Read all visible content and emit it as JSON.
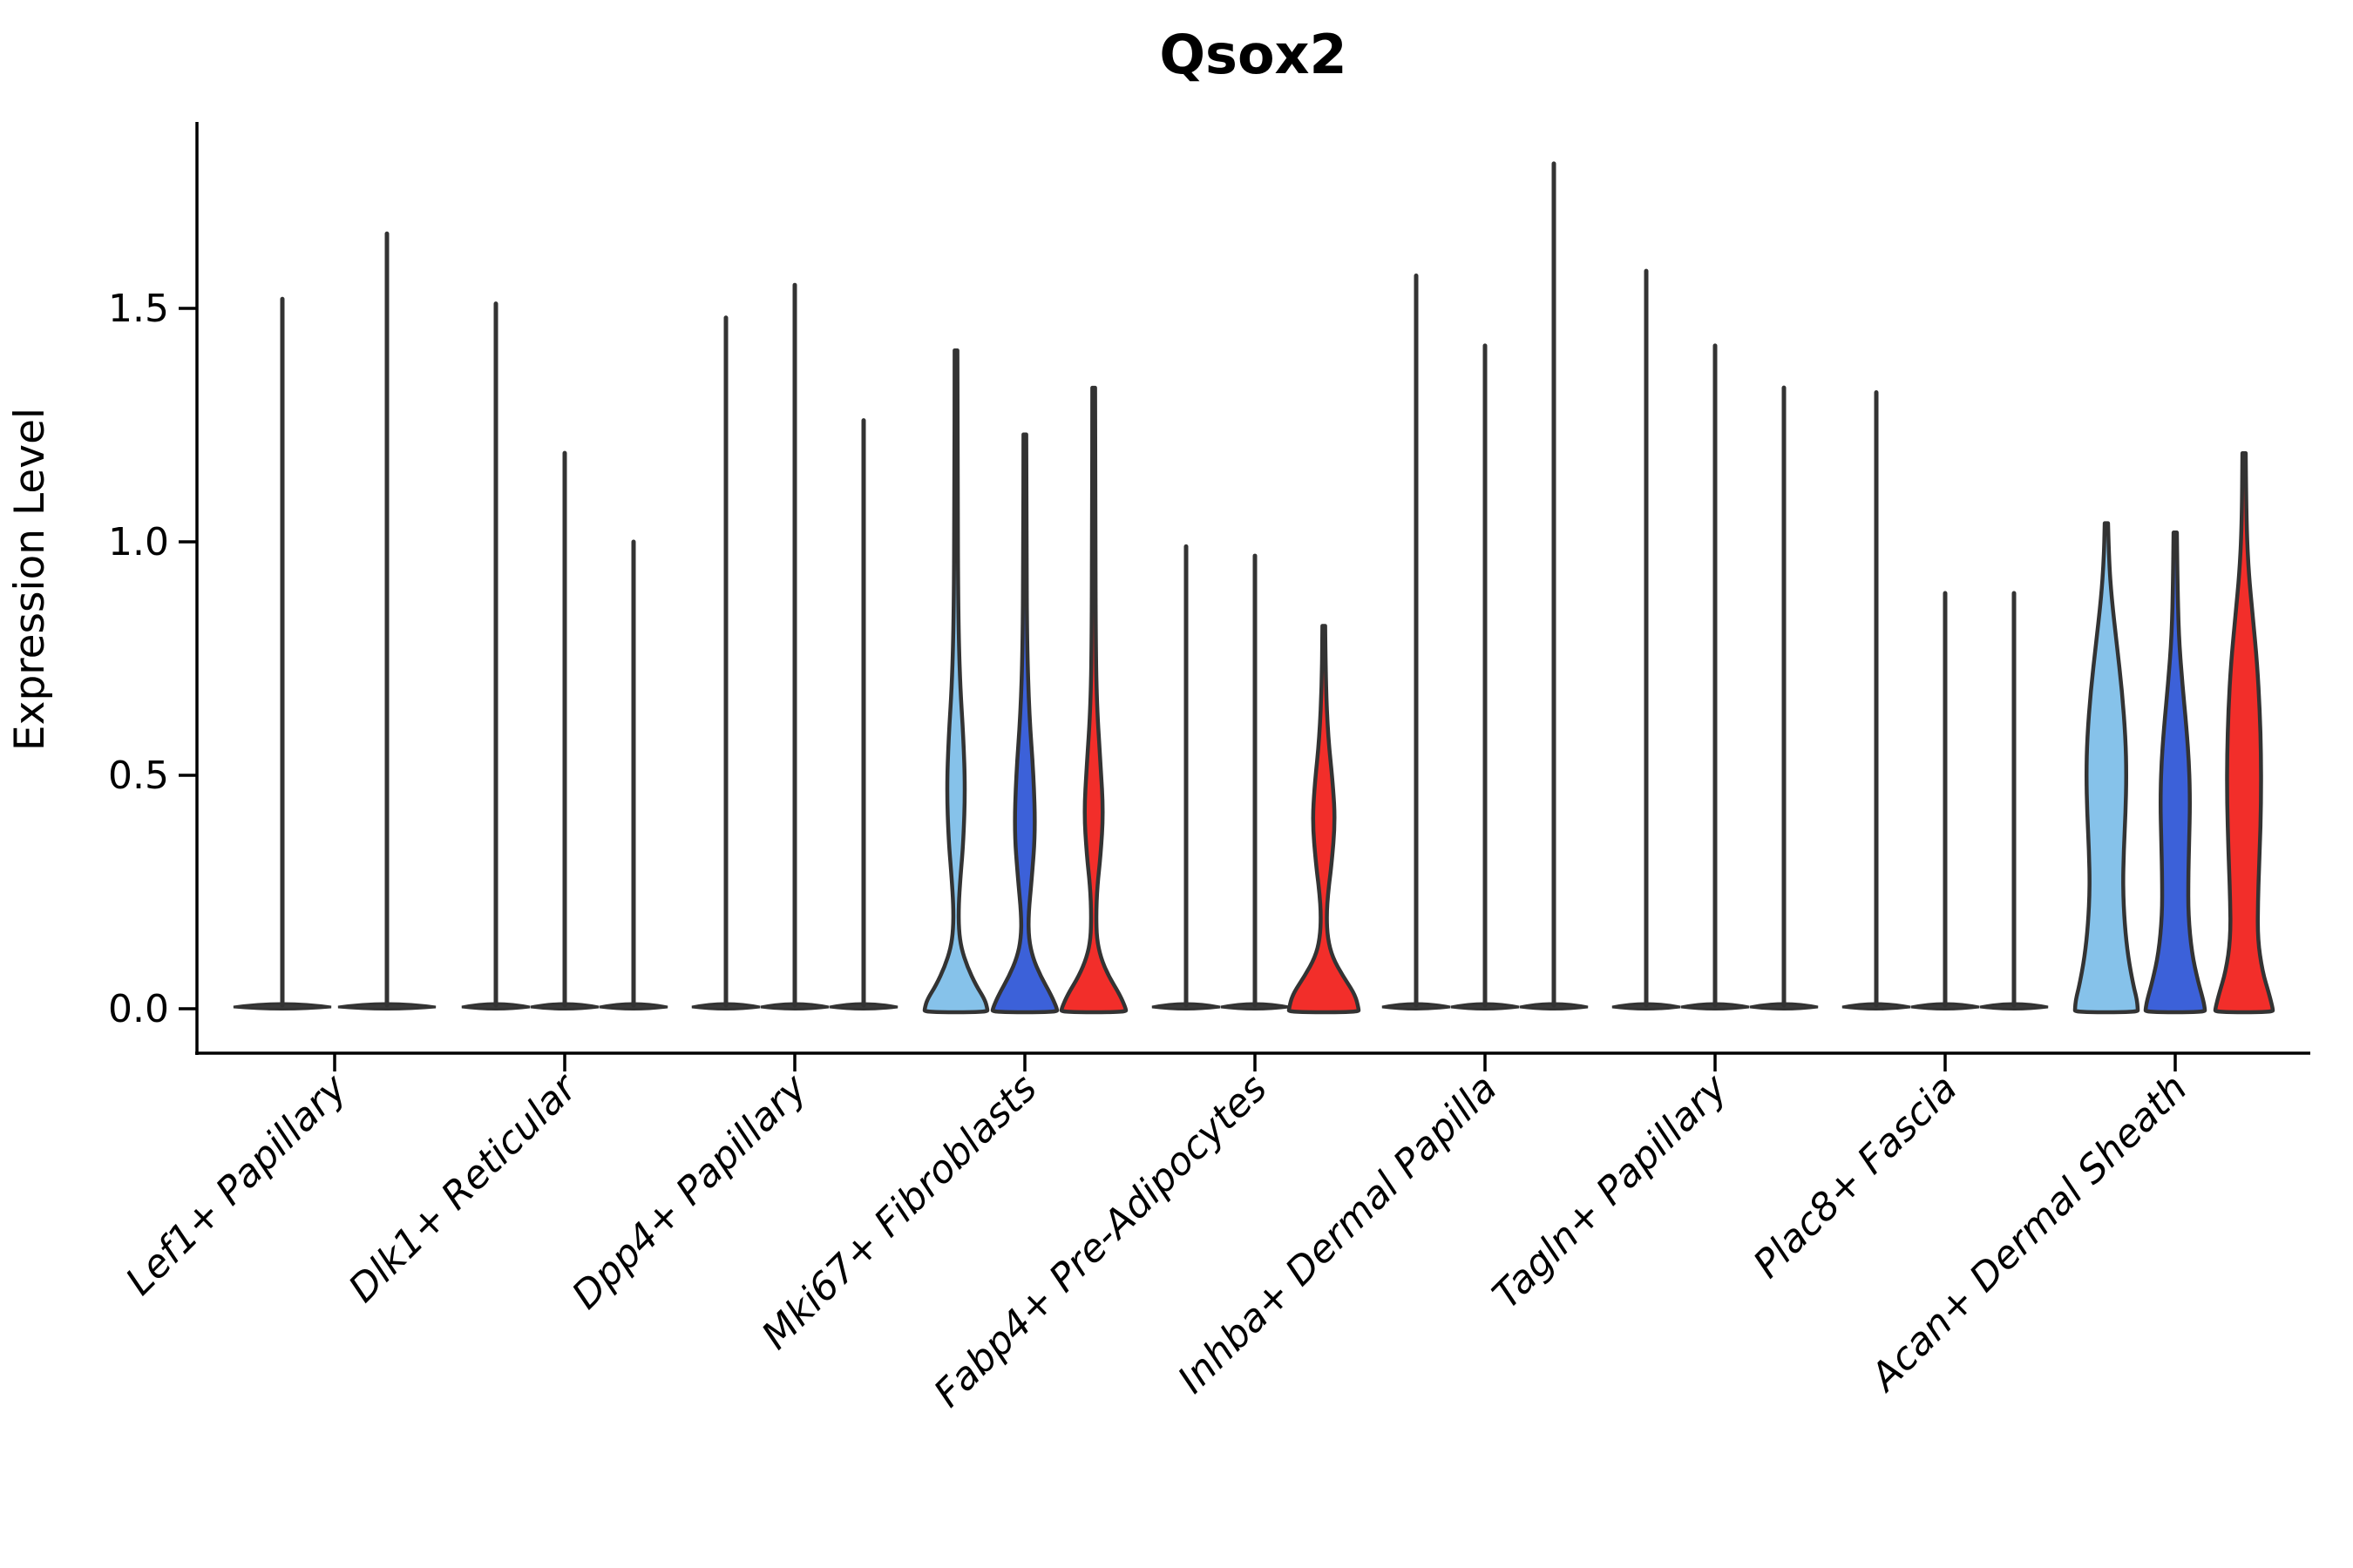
{
  "chart_data": {
    "type": "violin",
    "title": "Qsox2",
    "ylabel": "Expression Level",
    "xlabel": "",
    "legend": "none",
    "grid": false,
    "ylim": [
      -0.095,
      1.9
    ],
    "ytick_labels": [
      "0.0",
      "0.5",
      "1.0",
      "1.5"
    ],
    "ytick_values": [
      0.0,
      0.5,
      1.0,
      1.5
    ],
    "outline_color": "#333333",
    "spike_fill": "#3b3b3b",
    "split_colors": {
      "light_blue": "#86C2EA",
      "dark_blue": "#3C61D9",
      "red": "#F22E2A"
    },
    "categories": [
      "Lef1+ Papillary",
      "Dlk1+ Reticular",
      "Dpp4+ Papillary",
      "Mki67+ Fibroblasts",
      "Fabp4+ Pre-Adipocytes",
      "Inhba+ Dermal Papilla",
      "Tagln+ Papillary",
      "Plac8+ Fascia",
      "Acan+ Dermal Sheath"
    ],
    "groups": [
      {
        "category": "Lef1+ Papillary",
        "violins": [
          {
            "type": "spike",
            "color": null,
            "max": 1.52
          },
          {
            "type": "spike",
            "color": null,
            "max": 1.66
          }
        ]
      },
      {
        "category": "Dlk1+ Reticular",
        "violins": [
          {
            "type": "spike",
            "color": null,
            "max": 1.51
          },
          {
            "type": "spike",
            "color": null,
            "max": 1.19
          },
          {
            "type": "spike",
            "color": null,
            "max": 1.0
          }
        ]
      },
      {
        "category": "Dpp4+ Papillary",
        "violins": [
          {
            "type": "spike",
            "color": null,
            "max": 1.48
          },
          {
            "type": "spike",
            "color": null,
            "max": 1.55
          },
          {
            "type": "spike",
            "color": null,
            "max": 1.26
          }
        ]
      },
      {
        "category": "Mki67+ Fibroblasts",
        "violins": [
          {
            "type": "body",
            "color": "light_blue",
            "max": 1.41,
            "profile": [
              [
                1.41,
                1.6
              ],
              [
                1.1,
                1.9
              ],
              [
                0.85,
                2.5
              ],
              [
                0.7,
                4.5
              ],
              [
                0.58,
                8.5
              ],
              [
                0.47,
                10.5
              ],
              [
                0.36,
                8.5
              ],
              [
                0.28,
                5.0
              ],
              [
                0.22,
                3.0
              ],
              [
                0.17,
                3.2
              ],
              [
                0.13,
                6.0
              ],
              [
                0.09,
                13.0
              ],
              [
                0.05,
                23.0
              ],
              [
                0.02,
                33.0
              ],
              [
                0.0,
                36.0
              ]
            ]
          },
          {
            "type": "body",
            "color": "dark_blue",
            "max": 1.23,
            "profile": [
              [
                1.23,
                1.6
              ],
              [
                0.98,
                1.9
              ],
              [
                0.78,
                2.5
              ],
              [
                0.63,
                5.0
              ],
              [
                0.5,
                10.0
              ],
              [
                0.38,
                12.0
              ],
              [
                0.28,
                8.0
              ],
              [
                0.2,
                4.0
              ],
              [
                0.15,
                4.5
              ],
              [
                0.11,
                9.0
              ],
              [
                0.07,
                18.0
              ],
              [
                0.03,
                30.0
              ],
              [
                0.0,
                37.0
              ]
            ]
          },
          {
            "type": "body",
            "color": "red",
            "max": 1.33,
            "profile": [
              [
                1.33,
                1.6
              ],
              [
                1.05,
                1.9
              ],
              [
                0.82,
                2.2
              ],
              [
                0.65,
                3.5
              ],
              [
                0.52,
                8.0
              ],
              [
                0.42,
                11.0
              ],
              [
                0.33,
                8.0
              ],
              [
                0.26,
                4.0
              ],
              [
                0.2,
                2.8
              ],
              [
                0.15,
                3.5
              ],
              [
                0.11,
                8.0
              ],
              [
                0.07,
                17.0
              ],
              [
                0.03,
                30.0
              ],
              [
                0.0,
                37.0
              ]
            ]
          }
        ]
      },
      {
        "category": "Fabp4+ Pre-Adipocytes",
        "violins": [
          {
            "type": "spike",
            "color": null,
            "max": 0.99
          },
          {
            "type": "spike",
            "color": null,
            "max": 0.97
          },
          {
            "type": "body",
            "color": "red",
            "max": 0.82,
            "profile": [
              [
                0.82,
                1.6
              ],
              [
                0.7,
                2.2
              ],
              [
                0.58,
                5.0
              ],
              [
                0.48,
                10.5
              ],
              [
                0.4,
                13.0
              ],
              [
                0.31,
                9.0
              ],
              [
                0.25,
                5.0
              ],
              [
                0.2,
                3.2
              ],
              [
                0.15,
                4.5
              ],
              [
                0.11,
                10.0
              ],
              [
                0.07,
                22.0
              ],
              [
                0.03,
                36.0
              ],
              [
                0.0,
                40.0
              ]
            ]
          }
        ]
      },
      {
        "category": "Inhba+ Dermal Papilla",
        "violins": [
          {
            "type": "spike",
            "color": null,
            "max": 1.57
          },
          {
            "type": "spike",
            "color": null,
            "max": 1.42
          },
          {
            "type": "spike",
            "color": null,
            "max": 1.81
          }
        ]
      },
      {
        "category": "Tagln+ Papillary",
        "violins": [
          {
            "type": "spike",
            "color": null,
            "max": 1.58
          },
          {
            "type": "spike",
            "color": null,
            "max": 1.42
          },
          {
            "type": "spike",
            "color": null,
            "max": 1.33
          }
        ]
      },
      {
        "category": "Plac8+ Fascia",
        "violins": [
          {
            "type": "spike",
            "color": null,
            "max": 1.32
          },
          {
            "type": "spike",
            "color": null,
            "max": 0.89
          },
          {
            "type": "spike",
            "color": null,
            "max": 0.89
          }
        ]
      },
      {
        "category": "Acan+ Dermal Sheath",
        "violins": [
          {
            "type": "body",
            "color": "light_blue",
            "max": 1.04,
            "profile": [
              [
                1.04,
                1.9
              ],
              [
                0.96,
                3.0
              ],
              [
                0.88,
                6.0
              ],
              [
                0.78,
                12.0
              ],
              [
                0.68,
                18.0
              ],
              [
                0.58,
                22.0
              ],
              [
                0.5,
                23.0
              ],
              [
                0.42,
                22.0
              ],
              [
                0.34,
                20.0
              ],
              [
                0.26,
                19.0
              ],
              [
                0.18,
                21.0
              ],
              [
                0.11,
                25.0
              ],
              [
                0.05,
                31.0
              ],
              [
                0.02,
                35.0
              ],
              [
                0.0,
                36.0
              ]
            ]
          },
          {
            "type": "body",
            "color": "dark_blue",
            "max": 1.02,
            "profile": [
              [
                1.02,
                1.9
              ],
              [
                0.92,
                2.5
              ],
              [
                0.8,
                4.0
              ],
              [
                0.7,
                8.0
              ],
              [
                0.6,
                13.0
              ],
              [
                0.52,
                16.0
              ],
              [
                0.44,
                17.0
              ],
              [
                0.36,
                16.0
              ],
              [
                0.28,
                15.0
              ],
              [
                0.2,
                15.0
              ],
              [
                0.12,
                19.0
              ],
              [
                0.06,
                26.0
              ],
              [
                0.02,
                32.0
              ],
              [
                0.0,
                34.0
              ]
            ]
          },
          {
            "type": "body",
            "color": "red",
            "max": 1.19,
            "profile": [
              [
                1.19,
                1.9
              ],
              [
                1.05,
                2.5
              ],
              [
                0.94,
                5.0
              ],
              [
                0.84,
                10.0
              ],
              [
                0.74,
                15.0
              ],
              [
                0.64,
                18.0
              ],
              [
                0.54,
                19.5
              ],
              [
                0.44,
                19.5
              ],
              [
                0.34,
                18.0
              ],
              [
                0.24,
                16.0
              ],
              [
                0.15,
                15.5
              ],
              [
                0.08,
                21.0
              ],
              [
                0.03,
                29.0
              ],
              [
                0.0,
                33.0
              ]
            ]
          }
        ]
      }
    ]
  }
}
